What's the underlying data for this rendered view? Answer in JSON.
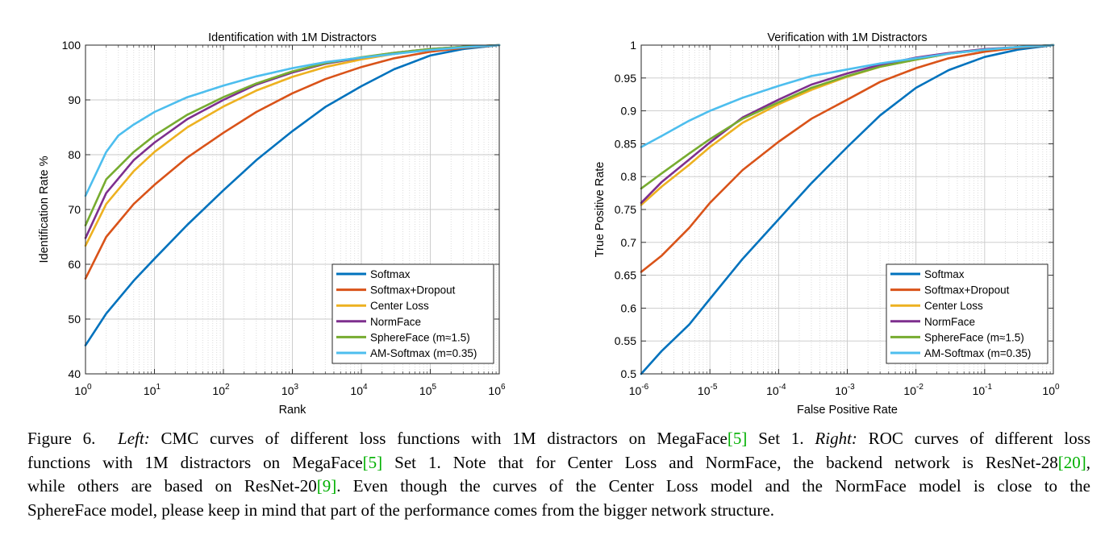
{
  "chart_data": [
    {
      "type": "line",
      "title": "Identification with 1M Distractors",
      "xlabel": "Rank",
      "ylabel": "Identification Rate %",
      "xscale": "log",
      "xlim": [
        1,
        1000000
      ],
      "ylim": [
        40,
        100
      ],
      "xtick_base": "10",
      "xtick_exps": [
        "0",
        "1",
        "2",
        "3",
        "4",
        "5",
        "6"
      ],
      "yticks": [
        "40",
        "50",
        "60",
        "70",
        "80",
        "90",
        "100"
      ],
      "grid": true,
      "legend_position": "bottom-right",
      "series": [
        {
          "name": "Softmax",
          "color": "#0072bd",
          "x": [
            1,
            2,
            5,
            10,
            30,
            100,
            300,
            1000,
            3000,
            10000,
            30000,
            100000,
            300000,
            1000000
          ],
          "y": [
            45.2,
            51,
            57,
            61,
            67.2,
            73.5,
            79,
            84.3,
            88.7,
            92.5,
            95.6,
            98.1,
            99.3,
            100
          ]
        },
        {
          "name": "Softmax+Dropout",
          "color": "#d95319",
          "x": [
            1,
            2,
            5,
            10,
            30,
            100,
            300,
            1000,
            3000,
            10000,
            30000,
            100000,
            300000,
            1000000
          ],
          "y": [
            57.4,
            65,
            71,
            74.5,
            79.5,
            84,
            87.8,
            91.2,
            93.8,
            96,
            97.6,
            98.8,
            99.5,
            100
          ]
        },
        {
          "name": "Center Loss",
          "color": "#edb120",
          "x": [
            1,
            2,
            5,
            10,
            30,
            100,
            300,
            1000,
            3000,
            10000,
            30000,
            100000,
            300000,
            1000000
          ],
          "y": [
            63.4,
            71,
            77,
            80.5,
            85,
            88.8,
            91.7,
            94.2,
            96,
            97.4,
            98.4,
            99.2,
            99.7,
            100
          ]
        },
        {
          "name": "NormFace",
          "color": "#7e2f8e",
          "x": [
            1,
            2,
            5,
            10,
            30,
            100,
            300,
            1000,
            3000,
            10000,
            30000,
            100000,
            300000,
            1000000
          ],
          "y": [
            64.8,
            73,
            79,
            82.2,
            86.5,
            90,
            92.8,
            95,
            96.6,
            97.7,
            98.6,
            99.3,
            99.7,
            100
          ]
        },
        {
          "name": "SphereFace (m≈1.5)",
          "color": "#77ac30",
          "x": [
            1,
            2,
            5,
            10,
            30,
            100,
            300,
            1000,
            3000,
            10000,
            30000,
            100000,
            300000,
            1000000
          ],
          "y": [
            67.1,
            75.5,
            80.5,
            83.5,
            87.3,
            90.5,
            93,
            95.2,
            96.7,
            97.8,
            98.6,
            99.3,
            99.7,
            100
          ]
        },
        {
          "name": "AM-Softmax (m=0.35)",
          "color": "#4dbeee",
          "x": [
            1,
            2,
            3,
            5,
            10,
            30,
            100,
            300,
            1000,
            3000,
            10000,
            30000,
            100000,
            300000,
            1000000
          ],
          "y": [
            72.5,
            80.5,
            83.5,
            85.5,
            87.8,
            90.5,
            92.6,
            94.3,
            95.8,
            96.9,
            97.7,
            98.4,
            99.1,
            99.6,
            100
          ]
        }
      ]
    },
    {
      "type": "line",
      "title": "Verification with 1M Distractors",
      "xlabel": "False Positive Rate",
      "ylabel": "True Positive Rate",
      "xscale": "log",
      "xlim": [
        1e-06,
        1
      ],
      "ylim": [
        0.5,
        1
      ],
      "xtick_base": "10",
      "xtick_exps": [
        "-6",
        "-5",
        "-4",
        "-3",
        "-2",
        "-1",
        "0"
      ],
      "yticks": [
        "0.5",
        "0.55",
        "0.6",
        "0.65",
        "0.7",
        "0.75",
        "0.8",
        "0.85",
        "0.9",
        "0.95",
        "1"
      ],
      "grid": true,
      "legend_position": "bottom-right",
      "series": [
        {
          "name": "Softmax",
          "color": "#0072bd",
          "x": [
            1e-06,
            2e-06,
            5e-06,
            1e-05,
            3e-05,
            0.0001,
            0.0003,
            0.001,
            0.003,
            0.01,
            0.03,
            0.1,
            0.3,
            1
          ],
          "y": [
            0.5,
            0.535,
            0.575,
            0.614,
            0.675,
            0.735,
            0.79,
            0.845,
            0.893,
            0.935,
            0.962,
            0.982,
            0.993,
            1
          ]
        },
        {
          "name": "Softmax+Dropout",
          "color": "#d95319",
          "x": [
            1e-06,
            2e-06,
            5e-06,
            1e-05,
            3e-05,
            0.0001,
            0.0003,
            0.001,
            0.003,
            0.01,
            0.03,
            0.1,
            0.3,
            1
          ],
          "y": [
            0.655,
            0.68,
            0.722,
            0.76,
            0.81,
            0.853,
            0.888,
            0.917,
            0.944,
            0.965,
            0.98,
            0.99,
            0.996,
            1
          ]
        },
        {
          "name": "Center Loss",
          "color": "#edb120",
          "x": [
            1e-06,
            2e-06,
            5e-06,
            1e-05,
            3e-05,
            0.0001,
            0.0003,
            0.001,
            0.003,
            0.01,
            0.03,
            0.1,
            0.3,
            1
          ],
          "y": [
            0.757,
            0.785,
            0.818,
            0.845,
            0.882,
            0.91,
            0.932,
            0.952,
            0.967,
            0.978,
            0.987,
            0.993,
            0.997,
            1
          ]
        },
        {
          "name": "NormFace",
          "color": "#7e2f8e",
          "x": [
            1e-06,
            2e-06,
            5e-06,
            1e-05,
            3e-05,
            0.0001,
            0.0003,
            0.001,
            0.003,
            0.01,
            0.03,
            0.1,
            0.3,
            1
          ],
          "y": [
            0.76,
            0.792,
            0.826,
            0.852,
            0.89,
            0.917,
            0.94,
            0.957,
            0.97,
            0.981,
            0.988,
            0.994,
            0.997,
            1
          ]
        },
        {
          "name": "SphereFace (m≈1.5)",
          "color": "#77ac30",
          "x": [
            1e-06,
            2e-06,
            5e-06,
            1e-05,
            3e-05,
            0.0001,
            0.0003,
            0.001,
            0.003,
            0.01,
            0.03,
            0.1,
            0.3,
            1
          ],
          "y": [
            0.782,
            0.805,
            0.835,
            0.857,
            0.888,
            0.913,
            0.935,
            0.953,
            0.967,
            0.978,
            0.987,
            0.993,
            0.997,
            1
          ]
        },
        {
          "name": "AM-Softmax (m=0.35)",
          "color": "#4dbeee",
          "x": [
            1e-06,
            2e-06,
            5e-06,
            1e-05,
            3e-05,
            0.0001,
            0.0003,
            0.001,
            0.003,
            0.01,
            0.03,
            0.1,
            0.3,
            1
          ],
          "y": [
            0.845,
            0.862,
            0.885,
            0.9,
            0.92,
            0.938,
            0.953,
            0.963,
            0.972,
            0.98,
            0.987,
            0.993,
            0.997,
            1
          ]
        }
      ]
    }
  ],
  "caption": {
    "fig_label": "Figure 6.",
    "left_label": "Left:",
    "left_text_1": "CMC curves of different loss functions with 1M distractors on MegaFace",
    "ref_megaface": "[5]",
    "left_text_2": "Set 1.",
    "right_label": "Right:",
    "right_text_1": "ROC curves of different loss",
    "line2_a": "functions with 1M distractors on MegaFace",
    "line2_b": "Set 1.  Note that for Center Loss and NormFace, the backend network is ResNet-28",
    "ref_resnet28": "[20]",
    "line2_c": ",",
    "line3_a": "while others are based on ResNet-20",
    "ref_resnet20": "[9]",
    "line3_b": ".  Even though the curves of the Center Loss model and the NormFace model is close to the",
    "line4": "SphereFace model, please keep in mind that part of the performance comes from the bigger network structure."
  }
}
